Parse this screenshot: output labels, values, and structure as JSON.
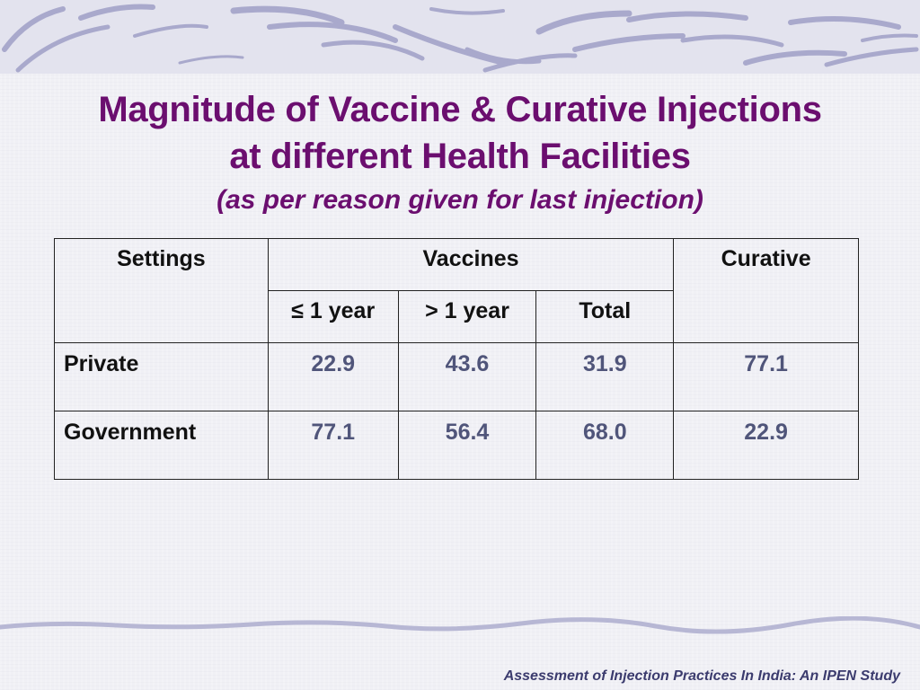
{
  "slide": {
    "title_line1": "Magnitude of Vaccine & Curative Injections",
    "title_line2": "at different Health Facilities",
    "subtitle": "(as per reason given for last injection)",
    "footer": "Assessment of Injection Practices In India: An IPEN Study"
  },
  "table": {
    "headers": {
      "settings": "Settings",
      "vaccines": "Vaccines",
      "curative": "Curative",
      "le_1_year": "≤ 1 year",
      "gt_1_year": "> 1 year",
      "total": "Total"
    },
    "rows": [
      {
        "setting": "Private",
        "le_1_year": "22.9",
        "gt_1_year": "43.6",
        "total": "31.9",
        "curative": "77.1"
      },
      {
        "setting": "Government",
        "le_1_year": "77.1",
        "gt_1_year": "56.4",
        "total": "68.0",
        "curative": "22.9"
      }
    ]
  },
  "colors": {
    "title": "#6b0e6f",
    "values": "#50557a",
    "banner_strokes": "#a9a9cc"
  }
}
